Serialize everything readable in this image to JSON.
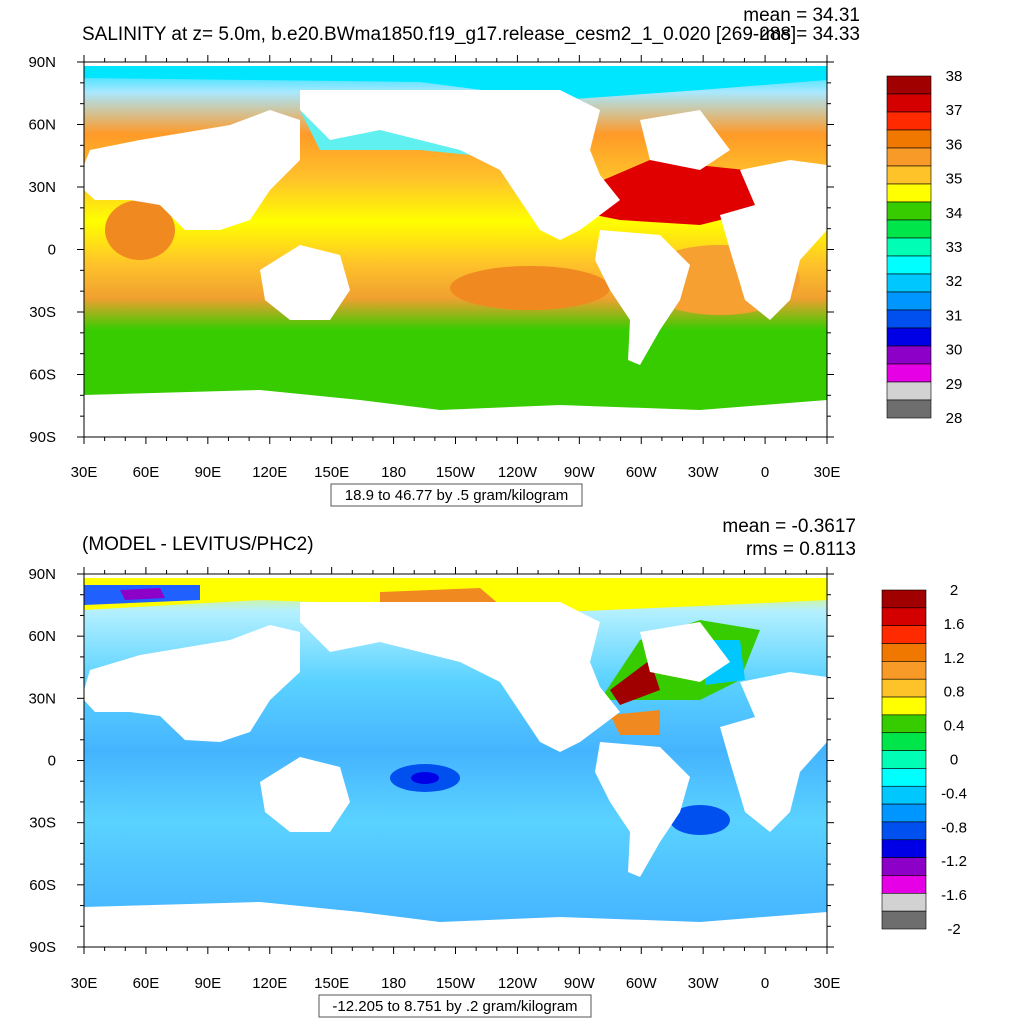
{
  "chart_data": [
    {
      "type": "heatmap",
      "title": "SALINITY at z=   5.0m, b.e20.BWma1850.f19_g17.release_cesm2_1_0.020 [269-288]",
      "stats": {
        "mean": "mean = 34.31",
        "rms": "rms = 34.33"
      },
      "x_ticks": [
        "30E",
        "60E",
        "90E",
        "120E",
        "150E",
        "180",
        "150W",
        "120W",
        "90W",
        "60W",
        "30W",
        "0",
        "30E"
      ],
      "y_ticks": [
        "90N",
        "60N",
        "30N",
        "0",
        "30S",
        "60S",
        "90S"
      ],
      "xlim": [
        30,
        390
      ],
      "ylim": [
        -90,
        90
      ],
      "contour_info": "18.9 to 46.77 by .5 gram/kilogram",
      "colorbar": {
        "labels": [
          "38",
          "37",
          "36",
          "35",
          "34",
          "33",
          "32",
          "31",
          "30",
          "29",
          "28"
        ],
        "colors": [
          "#a00000",
          "#d40000",
          "#ff2a00",
          "#f07800",
          "#f89a28",
          "#ffc32a",
          "#ffff00",
          "#36cc00",
          "#00e64a",
          "#00ffb4",
          "#00ffff",
          "#00c8ff",
          "#0096ff",
          "#0050f0",
          "#0000e6",
          "#8c00c8",
          "#e600e6",
          "#d2d2d2",
          "#6e6e6e"
        ]
      }
    },
    {
      "type": "heatmap",
      "title": "(MODEL - LEVITUS/PHC2)",
      "stats": {
        "mean": "mean = -0.3617",
        "rms": "rms = 0.8113"
      },
      "x_ticks": [
        "30E",
        "60E",
        "90E",
        "120E",
        "150E",
        "180",
        "150W",
        "120W",
        "90W",
        "60W",
        "30W",
        "0",
        "30E"
      ],
      "y_ticks": [
        "90N",
        "60N",
        "30N",
        "0",
        "30S",
        "60S",
        "90S"
      ],
      "xlim": [
        30,
        390
      ],
      "ylim": [
        -90,
        90
      ],
      "contour_info": "-12.205 to 8.751 by .2 gram/kilogram",
      "colorbar": {
        "labels": [
          "2",
          "1.6",
          "1.2",
          "0.8",
          "0.4",
          "0",
          "-0.4",
          "-0.8",
          "-1.2",
          "-1.6",
          "-2"
        ],
        "colors": [
          "#a00000",
          "#d40000",
          "#ff2a00",
          "#f07800",
          "#f89a28",
          "#ffc32a",
          "#ffff00",
          "#36cc00",
          "#00e64a",
          "#00ffb4",
          "#00ffff",
          "#00c8ff",
          "#0096ff",
          "#0050f0",
          "#0000e6",
          "#8c00c8",
          "#e600e6",
          "#d2d2d2",
          "#6e6e6e"
        ]
      }
    }
  ]
}
